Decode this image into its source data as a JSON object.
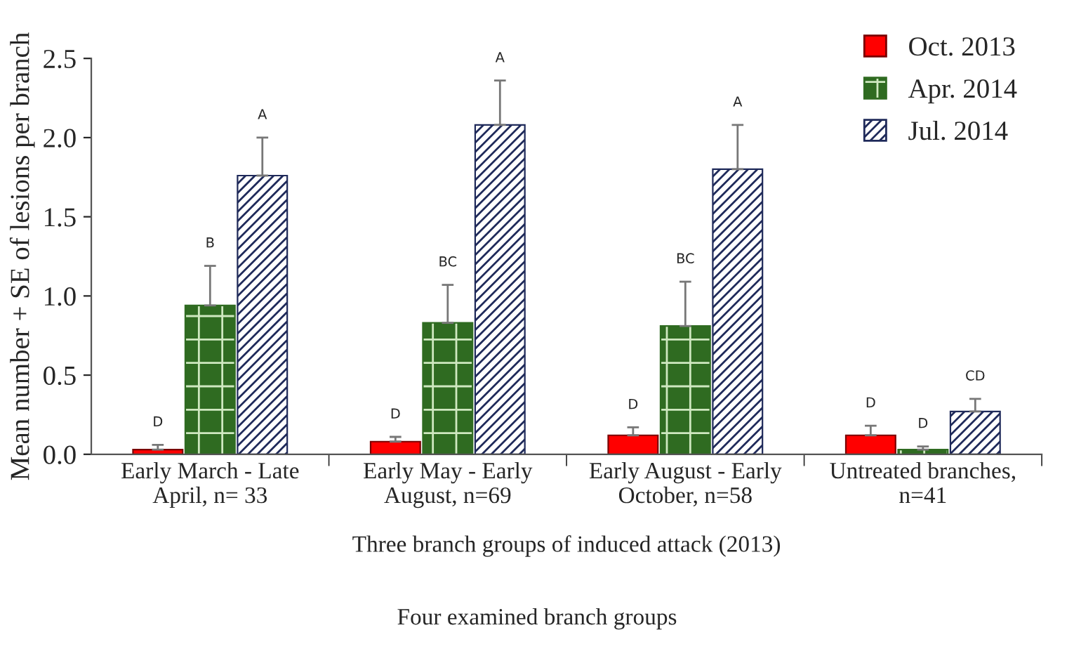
{
  "chart_data": {
    "type": "bar",
    "categories": [
      "Early March - Late\nApril, n= 33",
      "Early May - Early\nAugust, n=69",
      "Early August - Early\nOctober, n=58",
      "Untreated branches,\nn=41"
    ],
    "series": [
      {
        "name": "Oct. 2013",
        "color": "#ff0000",
        "values": [
          0.03,
          0.08,
          0.12,
          0.12
        ],
        "errors": [
          [
            0.03,
            0.06
          ],
          [
            0.08,
            0.11
          ],
          [
            0.12,
            0.17
          ],
          [
            0.12,
            0.18
          ]
        ]
      },
      {
        "name": "Apr. 2014",
        "color": "#2f6b21",
        "values": [
          0.94,
          0.83,
          0.81,
          0.03
        ],
        "errors": [
          [
            0.94,
            1.19
          ],
          [
            0.83,
            1.07
          ],
          [
            0.81,
            1.09
          ],
          [
            0.03,
            0.05
          ]
        ]
      },
      {
        "name": "Jul. 2014",
        "color": "#1f2a5a",
        "values": [
          1.76,
          2.08,
          1.8,
          0.27
        ],
        "errors": [
          [
            1.76,
            2.0
          ],
          [
            2.08,
            2.36
          ],
          [
            1.8,
            2.08
          ],
          [
            0.27,
            0.35
          ]
        ]
      }
    ],
    "ylabel": "Mean number + SE of lesions per branch",
    "xlabel": "Three branch groups of induced attack (2013)",
    "ylim": [
      0,
      2.5
    ],
    "yticks": [
      {
        "value": 0,
        "label": "0.0"
      },
      0.5,
      {
        "value": 1,
        "label": "1.0"
      },
      1.5,
      {
        "value": 2,
        "label": "2.0"
      },
      2.5
    ],
    "annotations": [
      "D",
      "B",
      "A",
      "D",
      "BC",
      "A",
      "D",
      "BC",
      "A",
      "D",
      "D",
      "CD",
      "Four examined branch groups"
    ],
    "grid": false,
    "legend": "top right"
  }
}
